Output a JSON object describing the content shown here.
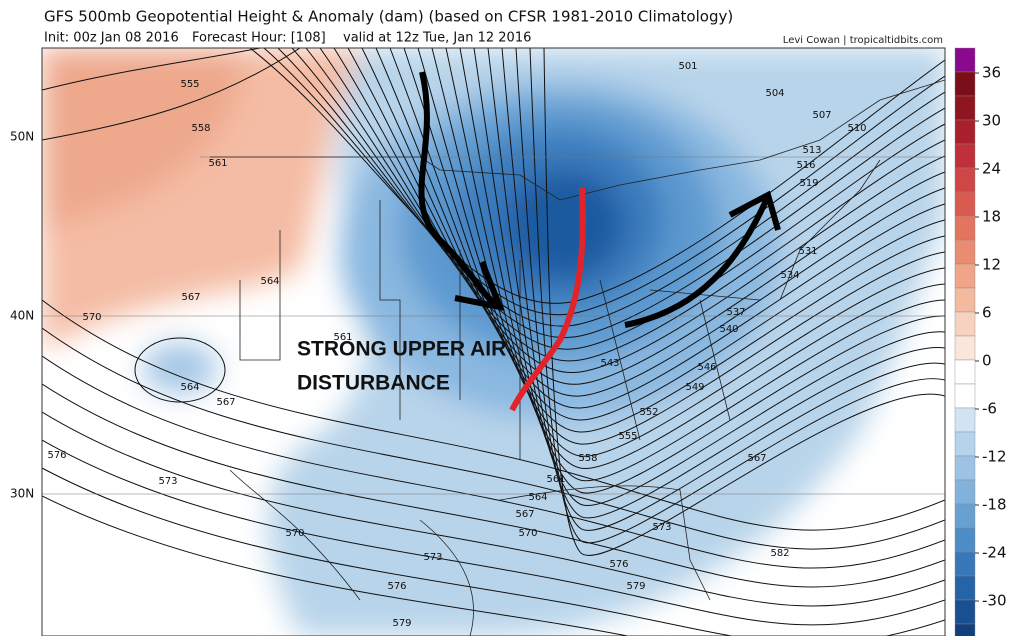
{
  "header": {
    "title": "GFS 500mb Geopotential Height & Anomaly (dam) (based on CFSR 1981-2010 Climatology)",
    "init": "Init: 00z Jan 08 2016",
    "forecast_hour": "Forecast Hour: [108]",
    "valid": "valid at 12z Tue, Jan 12 2016",
    "credit": "Levi Cowan | tropicaltidbits.com"
  },
  "colorbar": {
    "ticks": [
      36,
      30,
      24,
      18,
      12,
      6,
      0,
      -6,
      -12,
      -18,
      -24,
      -30
    ],
    "colors": [
      "#8a0a8e",
      "#7a0f1a",
      "#8f1520",
      "#a8202c",
      "#c0303a",
      "#cf4646",
      "#d85a50",
      "#e27460",
      "#ea8c72",
      "#f0a488",
      "#f4baa0",
      "#f8d2c0",
      "#fbe6dc",
      "#ffffff",
      "#ffffff",
      "#d2e4f2",
      "#b6d3ec",
      "#9cc3e4",
      "#82b2dc",
      "#68a0d2",
      "#4e8cc6",
      "#3878b8",
      "#2664a8",
      "#1a4f92",
      "#12407c"
    ]
  },
  "latitude_labels": [
    "50N",
    "40N",
    "30N"
  ],
  "contour_labels": [
    555,
    558,
    561,
    564,
    567,
    570,
    564,
    567,
    561,
    576,
    573,
    570,
    573,
    576,
    579,
    501,
    504,
    507,
    510,
    513,
    516,
    519,
    531,
    534,
    537,
    540,
    543,
    546,
    549,
    552,
    555,
    558,
    561,
    564,
    567,
    570,
    573,
    576,
    579,
    582,
    567
  ],
  "annotation": {
    "line1": "STRONG UPPER AIR",
    "line2": "DISTURBANCE"
  }
}
